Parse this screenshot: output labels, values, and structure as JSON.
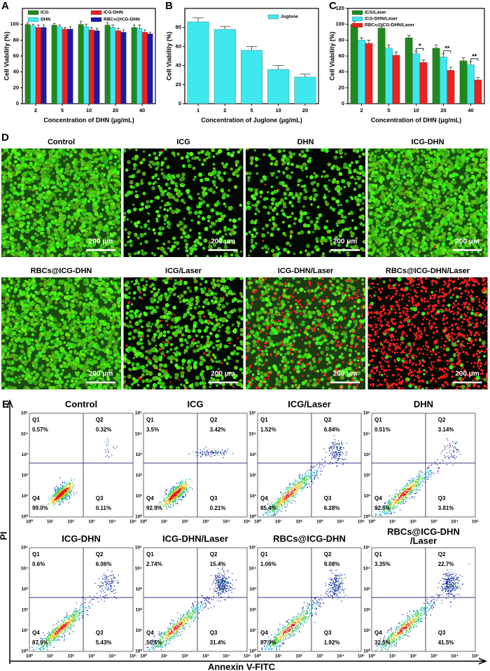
{
  "chart_data": [
    {
      "type": "bar",
      "panel": "A",
      "xlabel": "Concentration of DHN (μg/mL)",
      "ylabel": "Cell Viability (%)",
      "categories": [
        "2",
        "5",
        "10",
        "20",
        "40"
      ],
      "ylim": [
        0,
        120
      ],
      "yticks": [
        0,
        20,
        40,
        60,
        80,
        100
      ],
      "legend": "upper",
      "series": [
        {
          "name": "ICG",
          "color": "#1e8a1e",
          "values": [
            100,
            99,
            100,
            99,
            96
          ],
          "errors": [
            2,
            2,
            4,
            3,
            3
          ]
        },
        {
          "name": "DHN",
          "color": "#3ee8ee",
          "values": [
            98,
            97,
            97,
            96,
            95
          ],
          "errors": [
            2,
            2,
            3,
            3,
            4
          ]
        },
        {
          "name": "ICG-DHN",
          "color": "#ee2020",
          "values": [
            96,
            94,
            93,
            92,
            90
          ],
          "errors": [
            3,
            2,
            3,
            3,
            3
          ]
        },
        {
          "name": "RBCs@ICG-DHN",
          "color": "#1a1aa8",
          "values": [
            96,
            94,
            92,
            90,
            88
          ],
          "errors": [
            3,
            3,
            3,
            3,
            2
          ]
        }
      ]
    },
    {
      "type": "bar",
      "panel": "B",
      "xlabel": "Concentration of Juglone (μg/mL)",
      "ylabel": "Cell Viability (%)",
      "categories": [
        "1",
        "2",
        "5",
        "10",
        "20"
      ],
      "ylim": [
        0,
        100
      ],
      "yticks": [
        0,
        20,
        40,
        60,
        80
      ],
      "legend": "upper right",
      "series": [
        {
          "name": "Juglone",
          "color": "#3ee8ee",
          "values": [
            86,
            78,
            56,
            36,
            28
          ],
          "errors": [
            4,
            3,
            4,
            4,
            3
          ]
        }
      ]
    },
    {
      "type": "bar",
      "panel": "C",
      "xlabel": "Concentration of DHN (μg/mL)",
      "ylabel": "Cell Viability (%)",
      "categories": [
        "2",
        "5",
        "10",
        "20",
        "40"
      ],
      "ylim": [
        0,
        120
      ],
      "yticks": [
        0,
        20,
        40,
        60,
        80,
        100,
        120
      ],
      "legend": "upper left",
      "series": [
        {
          "name": "ICG/Laser",
          "color": "#1e8a1e",
          "values": [
            100,
            95,
            83,
            70,
            54
          ],
          "errors": [
            4,
            2,
            3,
            4,
            4
          ]
        },
        {
          "name": "ICG-DHN/Laser",
          "color": "#3ee8ee",
          "values": [
            80,
            70,
            63,
            59,
            49
          ],
          "errors": [
            3,
            4,
            3,
            4,
            4
          ]
        },
        {
          "name": "RBCs@ICG-DHN/Laser",
          "color": "#ee2020",
          "values": [
            76,
            61,
            52,
            42,
            30
          ],
          "errors": [
            4,
            4,
            3,
            4,
            3
          ]
        }
      ],
      "annotations": [
        {
          "text": "*",
          "category": "10"
        },
        {
          "text": "**",
          "category": "20"
        },
        {
          "text": "**",
          "category": "40"
        }
      ]
    }
  ],
  "microscopy": {
    "panel": "D",
    "scale_bar": "200 μm",
    "images": [
      "Control",
      "ICG",
      "DHN",
      "ICG-DHN",
      "RBCs@ICG-DHN",
      "ICG/Laser",
      "ICG-DHN/Laser",
      "RBCs@ICG-DHN/Laser"
    ]
  },
  "flow_cytometry": {
    "panel": "E",
    "x_label": "Annexin V-FITC",
    "y_label": "PI",
    "ticks": [
      "10⁰",
      "10¹",
      "10²",
      "10³",
      "10⁴",
      "10⁵"
    ],
    "quadrant_names": [
      "Q1",
      "Q2",
      "Q3",
      "Q4"
    ],
    "plots": [
      {
        "title": [
          "Control"
        ],
        "quadrants": [
          "0.57%",
          "0.32%",
          "0.11%",
          "99.0%"
        ]
      },
      {
        "title": [
          "ICG"
        ],
        "quadrants": [
          "3.5%",
          "3.42%",
          "0.21%",
          "92.9%"
        ]
      },
      {
        "title": [
          "ICG/Laser"
        ],
        "quadrants": [
          "1.52%",
          "6.84%",
          "6.28%",
          "85.4%"
        ]
      },
      {
        "title": [
          "DHN"
        ],
        "quadrants": [
          "0.51%",
          "3.14%",
          "3.81%",
          "92.5%"
        ]
      },
      {
        "title": [
          "ICG-DHN"
        ],
        "quadrants": [
          "0.6%",
          "6.06%",
          "5.43%",
          "87.9%"
        ]
      },
      {
        "title": [
          "ICG-DHN/Laser"
        ],
        "quadrants": [
          "2.74%",
          "15.4%",
          "31.4%",
          "50.5%"
        ]
      },
      {
        "title": [
          "RBCs@ICG-DHN"
        ],
        "quadrants": [
          "1.06%",
          "9.08%",
          "1.92%",
          "87.9%"
        ]
      },
      {
        "title": [
          "RBCs@ICG-DHN",
          "/Laser"
        ],
        "quadrants": [
          "3.35%",
          "22.7%",
          "41.5%",
          "32.5%"
        ]
      }
    ]
  }
}
